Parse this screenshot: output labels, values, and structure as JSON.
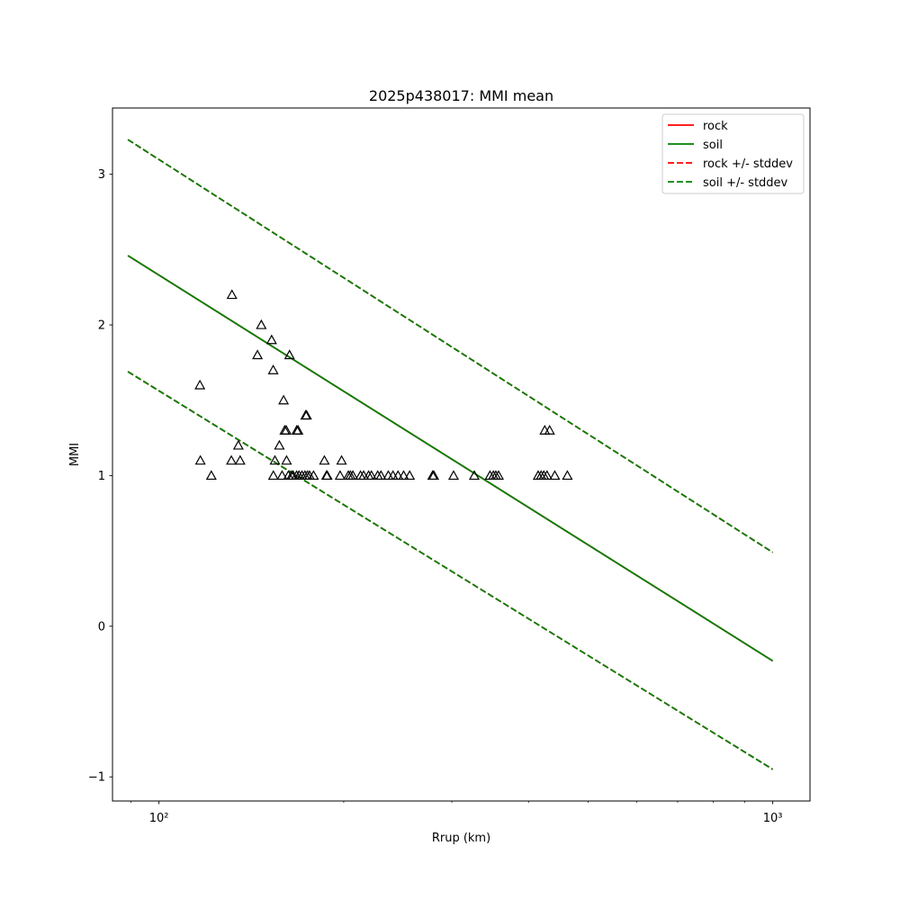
{
  "chart_data": {
    "type": "scatter",
    "title": "2025p438017: MMI mean",
    "xlabel": "Rrup (km)",
    "ylabel": "MMI",
    "xscale": "log",
    "xlim": [
      84,
      1150
    ],
    "ylim": [
      -1.16,
      3.44
    ],
    "xticks_major": [
      100,
      1000
    ],
    "xtick_labels": [
      "10²",
      "10³"
    ],
    "yticks": [
      -1,
      0,
      1,
      2,
      3
    ],
    "ytick_labels": [
      "−1",
      "0",
      "1",
      "2",
      "3"
    ],
    "grid": false,
    "legend_position": "top-right",
    "series": [
      {
        "name": "rock",
        "kind": "line",
        "color": "#ff0000",
        "dash": "solid",
        "x": [
          89,
          1000
        ],
        "y": [
          2.46,
          -0.23
        ]
      },
      {
        "name": "soil",
        "kind": "line",
        "color": "#008000",
        "dash": "solid",
        "x": [
          89,
          1000
        ],
        "y": [
          2.46,
          -0.23
        ]
      },
      {
        "name": "rock +/- stddev",
        "kind": "band",
        "color": "#ff0000",
        "dash": "dashed",
        "x": [
          89,
          1000
        ],
        "upper": [
          3.23,
          0.49
        ],
        "lower": [
          1.69,
          -0.95
        ]
      },
      {
        "name": "soil +/- stddev",
        "kind": "band",
        "color": "#008000",
        "dash": "dashed",
        "x": [
          89,
          1000
        ],
        "upper": [
          3.23,
          0.49
        ],
        "lower": [
          1.69,
          -0.95
        ]
      }
    ],
    "observations": {
      "marker": "triangle",
      "color": "#000000",
      "points": [
        [
          116.6,
          1.6
        ],
        [
          116.8,
          1.1
        ],
        [
          121.7,
          1.0
        ],
        [
          131.5,
          2.2
        ],
        [
          131.2,
          1.1
        ],
        [
          134.7,
          1.2
        ],
        [
          135.6,
          1.1
        ],
        [
          144.7,
          1.8
        ],
        [
          146.8,
          2.0
        ],
        [
          152.6,
          1.9
        ],
        [
          153.5,
          1.7
        ],
        [
          154.5,
          1.1
        ],
        [
          153.6,
          1.0
        ],
        [
          157.1,
          1.2
        ],
        [
          158.7,
          1.0
        ],
        [
          159.6,
          1.5
        ],
        [
          160.3,
          1.3
        ],
        [
          161.4,
          1.1
        ],
        [
          161.2,
          1.3
        ],
        [
          162.5,
          1.0
        ],
        [
          163.2,
          1.8
        ],
        [
          164.5,
          1.0
        ],
        [
          165.4,
          1.0
        ],
        [
          167.7,
          1.3
        ],
        [
          168.5,
          1.3
        ],
        [
          167.6,
          1.0
        ],
        [
          169.1,
          1.0
        ],
        [
          171.0,
          1.0
        ],
        [
          172.9,
          1.0
        ],
        [
          173.4,
          1.4
        ],
        [
          174.0,
          1.4
        ],
        [
          174.5,
          1.0
        ],
        [
          175.9,
          1.0
        ],
        [
          178.6,
          1.0
        ],
        [
          186.0,
          1.1
        ],
        [
          187.5,
          1.0
        ],
        [
          188.0,
          1.0
        ],
        [
          197.3,
          1.0
        ],
        [
          198.4,
          1.1
        ],
        [
          203.5,
          1.0
        ],
        [
          205.1,
          1.0
        ],
        [
          207.0,
          1.0
        ],
        [
          213.0,
          1.0
        ],
        [
          215.5,
          1.0
        ],
        [
          219.6,
          1.0
        ],
        [
          221.9,
          1.0
        ],
        [
          227.2,
          1.0
        ],
        [
          230.0,
          1.0
        ],
        [
          236.4,
          1.0
        ],
        [
          240.6,
          1.0
        ],
        [
          245.2,
          1.0
        ],
        [
          250.4,
          1.0
        ],
        [
          256.1,
          1.0
        ],
        [
          279.2,
          1.0
        ],
        [
          280.4,
          1.0
        ],
        [
          302.0,
          1.0
        ],
        [
          326.4,
          1.0
        ],
        [
          346.2,
          1.0
        ],
        [
          350.6,
          1.0
        ],
        [
          353.9,
          1.0
        ],
        [
          357.5,
          1.0
        ],
        [
          414.8,
          1.0
        ],
        [
          419.4,
          1.0
        ],
        [
          423.7,
          1.0
        ],
        [
          425.2,
          1.3
        ],
        [
          428.8,
          1.0
        ],
        [
          433.0,
          1.3
        ],
        [
          441.5,
          1.0
        ],
        [
          462.8,
          1.0
        ]
      ]
    }
  }
}
